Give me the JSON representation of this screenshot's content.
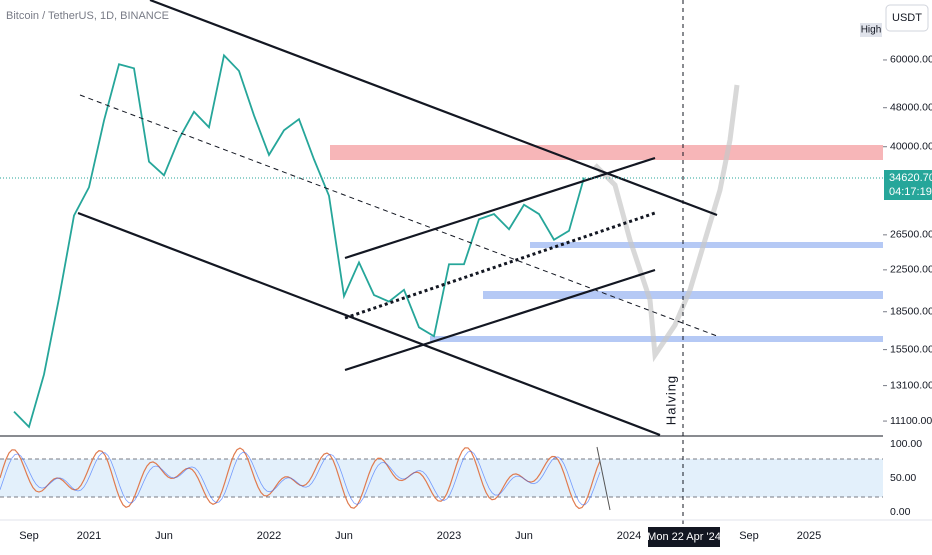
{
  "chart_data": {
    "type": "line",
    "title": "Bitcoin / TetherUS, 1D, BINANCE",
    "currency": "USDT",
    "scale_mode": "High",
    "annotation": "Halving",
    "crosshair_label": "Mon 22 Apr '24",
    "last_price": {
      "value": 34620.7,
      "label": "34620.70"
    },
    "countdown": "04:17:19",
    "log_scale": true,
    "color": "#26a69a",
    "categories": [
      null,
      "Sep",
      null,
      null,
      null,
      "2021",
      null,
      null,
      null,
      null,
      "Jun",
      null,
      null,
      null,
      null,
      null,
      null,
      "2022",
      null,
      null,
      null,
      null,
      "Jun",
      null,
      null,
      null,
      null,
      null,
      null,
      "2023",
      null,
      null,
      null,
      null,
      "Jun",
      null,
      null,
      null,
      null,
      null,
      null,
      "2024",
      null,
      null,
      null,
      null,
      null,
      null,
      null,
      "Sep",
      null,
      null,
      null,
      "2025"
    ],
    "values": [
      11600,
      10800,
      13800,
      19700,
      29000,
      33100,
      45200,
      58800,
      57700,
      37300,
      35000,
      41500,
      47100,
      43800,
      61300,
      57000,
      46300,
      38500,
      43200,
      45500,
      37700,
      31800,
      19900,
      23300,
      20000,
      19400,
      20500,
      17200,
      16500,
      23100,
      23100,
      28500,
      29200,
      27200,
      30500,
      29200,
      25900,
      27000,
      34620.7,
      null,
      null,
      null,
      null,
      null,
      null,
      null,
      null,
      null,
      null,
      null,
      null,
      null,
      null,
      null
    ],
    "ylim": [
      10400,
      79400
    ],
    "yticks": [
      {
        "value": 60000,
        "label": "60000.00"
      },
      {
        "value": 48000,
        "label": "48000.00"
      },
      {
        "value": 40000,
        "label": "40000.00"
      },
      {
        "value": 26500,
        "label": "26500.00"
      },
      {
        "value": 22500,
        "label": "22500.00"
      },
      {
        "value": 18500,
        "label": "18500.00"
      },
      {
        "value": 15500,
        "label": "15500.00"
      },
      {
        "value": 13100,
        "label": "13100.00"
      },
      {
        "value": 11100,
        "label": "11100.00"
      }
    ],
    "oscillator_ticks": [
      {
        "value": 100,
        "label": "100.00"
      },
      {
        "value": 50,
        "label": "50.00"
      },
      {
        "value": 0,
        "label": "0.00"
      }
    ]
  }
}
